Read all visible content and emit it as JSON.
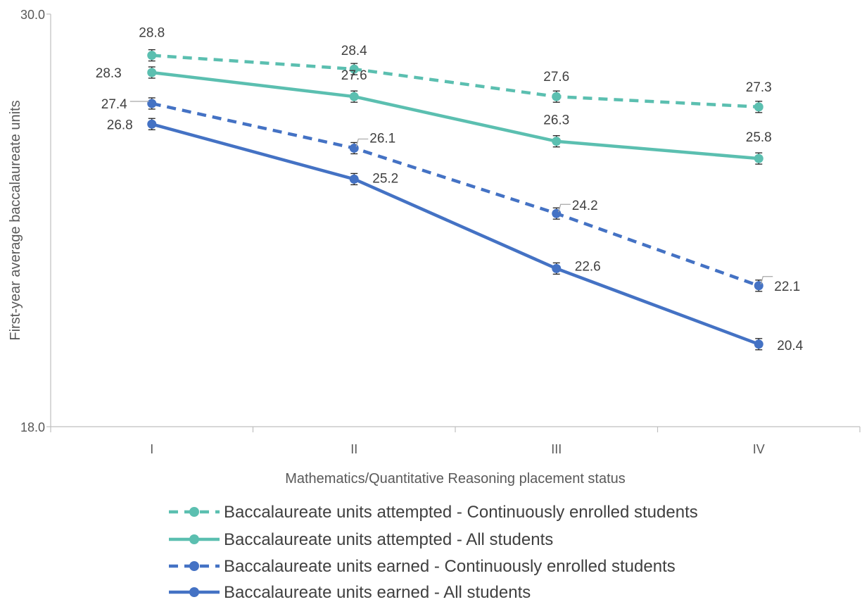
{
  "chart_data": {
    "type": "line",
    "categories": [
      "I",
      "II",
      "III",
      "IV"
    ],
    "xlabel": "Mathematics/Quantitative Reasoning placement status",
    "ylabel": "First-year average baccalaureate units",
    "ylim": [
      18.0,
      30.0
    ],
    "y_tick_labels": [
      "30.0",
      "18.0"
    ],
    "grid": false,
    "legend_position": "bottom",
    "series": [
      {
        "name": "Baccalaureate units attempted - Continuously enrolled students",
        "values": [
          28.8,
          28.4,
          27.6,
          27.3
        ],
        "labels": [
          "28.8",
          "28.4",
          "27.6",
          "27.3"
        ],
        "color": "#5bbfb0",
        "dashed": true
      },
      {
        "name": "Baccalaureate units attempted - All students",
        "values": [
          28.3,
          27.6,
          26.3,
          25.8
        ],
        "labels": [
          "28.3",
          "27.6",
          "26.3",
          "25.8"
        ],
        "color": "#5bbfb0",
        "dashed": false
      },
      {
        "name": "Baccalaureate units earned - Continuously enrolled students",
        "values": [
          27.4,
          26.1,
          24.2,
          22.1
        ],
        "labels": [
          "27.4",
          "26.1",
          "24.2",
          "22.1"
        ],
        "color": "#4472c4",
        "dashed": true
      },
      {
        "name": "Baccalaureate units earned - All students",
        "values": [
          26.8,
          25.2,
          22.6,
          20.4
        ],
        "labels": [
          "26.8",
          "25.2",
          "22.6",
          "20.4"
        ],
        "color": "#4472c4",
        "dashed": false
      }
    ]
  }
}
